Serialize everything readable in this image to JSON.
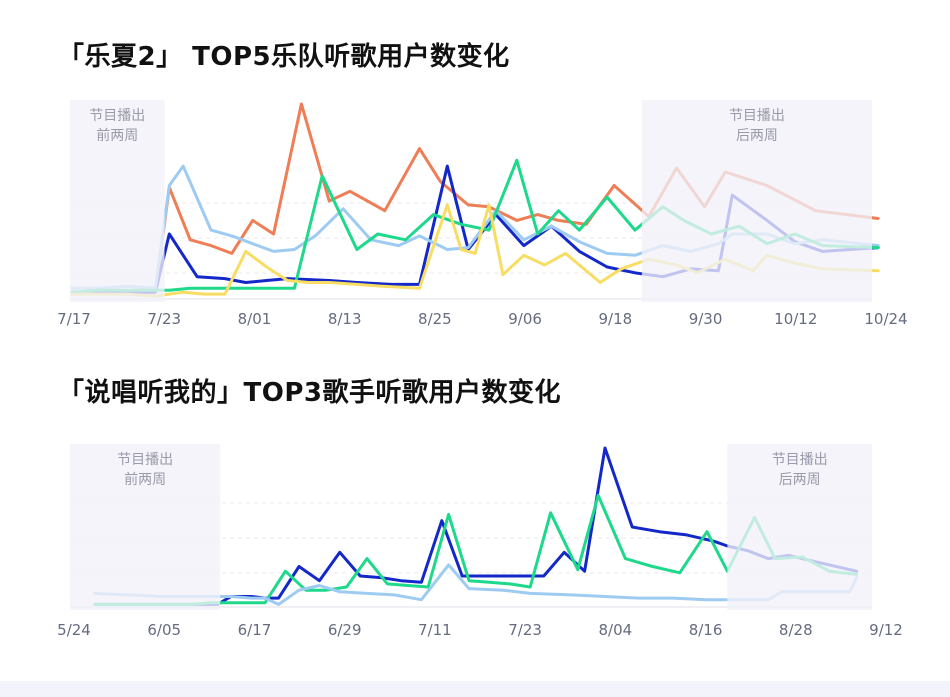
{
  "charts": {
    "band_title": "「乐夏2」 TOP5乐队听歌用户数变化",
    "rap_title": "「说唱听我的」TOP3歌手听歌用户数变化"
  },
  "chart_data": [
    {
      "type": "line",
      "title": "「乐夏2」 TOP5乐队听歌用户数变化",
      "x_tick_labels": [
        "7/17",
        "7/23",
        "8/01",
        "8/13",
        "8/25",
        "9/06",
        "9/18",
        "9/30",
        "10/12",
        "10/24"
      ],
      "x_start": "7/17",
      "annotations": [
        {
          "text": "节目播出\n前两周",
          "from_day": 0,
          "to_day": 9
        },
        {
          "text": "节目播出\n后两周",
          "from_day": 82,
          "to_day": 97
        }
      ],
      "grid": true,
      "y_axis_labels": false,
      "ylim": [
        0,
        100
      ],
      "colors": [
        "#ef7d55",
        "#1428c9",
        "#9ecbf2",
        "#1ed88b",
        "#f7dd63"
      ],
      "series": [
        {
          "color": "#ef7d55",
          "points": [
            [
              0,
              3
            ],
            [
              4,
              3
            ],
            [
              8,
              3
            ],
            [
              10,
              3
            ],
            [
              12,
              3
            ],
            [
              14,
              57
            ],
            [
              17,
              30
            ],
            [
              20,
              27
            ],
            [
              23,
              23
            ],
            [
              26,
              40
            ],
            [
              29,
              33
            ],
            [
              33,
              100
            ],
            [
              37,
              50
            ],
            [
              40,
              55
            ],
            [
              45,
              45
            ],
            [
              50,
              77
            ],
            [
              53,
              60
            ],
            [
              57,
              48
            ],
            [
              60,
              47
            ],
            [
              64,
              40
            ],
            [
              67,
              43
            ],
            [
              70,
              40
            ],
            [
              74,
              38
            ],
            [
              78,
              58
            ],
            [
              83,
              42
            ],
            [
              87,
              67
            ],
            [
              91,
              47
            ],
            [
              94,
              65
            ],
            [
              100,
              58
            ],
            [
              107,
              45
            ],
            [
              116,
              41
            ]
          ]
        },
        {
          "color": "#1428c9",
          "points": [
            [
              0,
              3
            ],
            [
              4,
              3
            ],
            [
              8,
              3
            ],
            [
              10,
              3
            ],
            [
              12,
              3
            ],
            [
              14,
              33
            ],
            [
              18,
              11
            ],
            [
              22,
              10
            ],
            [
              25,
              8
            ],
            [
              28,
              9
            ],
            [
              31,
              10
            ],
            [
              37,
              9
            ],
            [
              41,
              8
            ],
            [
              46,
              7
            ],
            [
              50,
              7
            ],
            [
              54,
              68
            ],
            [
              57,
              25
            ],
            [
              61,
              43
            ],
            [
              65,
              27
            ],
            [
              69,
              37
            ],
            [
              73,
              24
            ],
            [
              77,
              16
            ],
            [
              81,
              13
            ],
            [
              85,
              11
            ],
            [
              89,
              15
            ],
            [
              93,
              14
            ],
            [
              95,
              53
            ],
            [
              100,
              40
            ],
            [
              104,
              29
            ],
            [
              108,
              24
            ],
            [
              116,
              26
            ]
          ]
        },
        {
          "color": "#9ecbf2",
          "points": [
            [
              0,
              5
            ],
            [
              4,
              5
            ],
            [
              8,
              6
            ],
            [
              12,
              5
            ],
            [
              14,
              58
            ],
            [
              16,
              68
            ],
            [
              20,
              35
            ],
            [
              23,
              32
            ],
            [
              26,
              28
            ],
            [
              29,
              24
            ],
            [
              32,
              25
            ],
            [
              35,
              32
            ],
            [
              39,
              46
            ],
            [
              43,
              30
            ],
            [
              47,
              27
            ],
            [
              50,
              32
            ],
            [
              54,
              25
            ],
            [
              57,
              26
            ],
            [
              61,
              45
            ],
            [
              65,
              30
            ],
            [
              69,
              37
            ],
            [
              73,
              29
            ],
            [
              77,
              23
            ],
            [
              81,
              22
            ],
            [
              85,
              27
            ],
            [
              89,
              24
            ],
            [
              93,
              28
            ],
            [
              95,
              33
            ],
            [
              100,
              33
            ],
            [
              104,
              28
            ],
            [
              108,
              30
            ],
            [
              116,
              27
            ]
          ]
        },
        {
          "color": "#1ed88b",
          "points": [
            [
              0,
              3
            ],
            [
              4,
              4
            ],
            [
              8,
              4
            ],
            [
              12,
              4
            ],
            [
              14,
              4
            ],
            [
              17,
              5
            ],
            [
              20,
              5
            ],
            [
              24,
              5
            ],
            [
              28,
              5
            ],
            [
              32,
              5
            ],
            [
              36,
              63
            ],
            [
              41,
              25
            ],
            [
              44,
              33
            ],
            [
              48,
              30
            ],
            [
              52,
              43
            ],
            [
              56,
              38
            ],
            [
              60,
              35
            ],
            [
              64,
              71
            ],
            [
              67,
              33
            ],
            [
              70,
              45
            ],
            [
              73,
              35
            ],
            [
              77,
              52
            ],
            [
              81,
              35
            ],
            [
              85,
              47
            ],
            [
              88,
              40
            ],
            [
              92,
              33
            ],
            [
              96,
              37
            ],
            [
              100,
              28
            ],
            [
              104,
              33
            ],
            [
              108,
              27
            ],
            [
              116,
              26
            ]
          ]
        },
        {
          "color": "#f7dd63",
          "points": [
            [
              0,
              2
            ],
            [
              4,
              2
            ],
            [
              8,
              2
            ],
            [
              12,
              1
            ],
            [
              16,
              3
            ],
            [
              19,
              2
            ],
            [
              22,
              2
            ],
            [
              25,
              24
            ],
            [
              28,
              16
            ],
            [
              31,
              9
            ],
            [
              34,
              8
            ],
            [
              37,
              8
            ],
            [
              41,
              7
            ],
            [
              45,
              6
            ],
            [
              50,
              5
            ],
            [
              54,
              48
            ],
            [
              56,
              25
            ],
            [
              58,
              23
            ],
            [
              60,
              48
            ],
            [
              62,
              12
            ],
            [
              65,
              22
            ],
            [
              68,
              17
            ],
            [
              71,
              23
            ],
            [
              76,
              8
            ],
            [
              79,
              15
            ],
            [
              83,
              20
            ],
            [
              87,
              17
            ],
            [
              90,
              13
            ],
            [
              94,
              20
            ],
            [
              98,
              14
            ],
            [
              100,
              22
            ],
            [
              104,
              18
            ],
            [
              108,
              15
            ],
            [
              116,
              14
            ]
          ]
        }
      ]
    },
    {
      "type": "line",
      "title": "「说唱听我的」TOP3歌手听歌用户数变化",
      "x_tick_labels": [
        "5/24",
        "6/05",
        "6/17",
        "6/29",
        "7/11",
        "7/23",
        "8/04",
        "8/16",
        "8/28",
        "9/12"
      ],
      "x_start": "5/24",
      "annotations": [
        {
          "text": "节目播出\n前两周",
          "from_day": 0,
          "to_day": 14
        },
        {
          "text": "节目播出\n后两周",
          "from_day": 93,
          "to_day": 112
        }
      ],
      "grid": true,
      "y_axis_labels": false,
      "ylim": [
        0,
        100
      ],
      "colors": [
        "#1428c9",
        "#1ed88b",
        "#9ecbf2"
      ],
      "series": [
        {
          "color": "#1428c9",
          "points": [
            [
              0,
              1
            ],
            [
              5,
              1
            ],
            [
              10,
              1
            ],
            [
              14,
              1
            ],
            [
              18,
              1
            ],
            [
              20,
              6
            ],
            [
              23,
              6
            ],
            [
              25,
              5
            ],
            [
              27,
              5
            ],
            [
              30,
              25
            ],
            [
              33,
              16
            ],
            [
              36,
              34
            ],
            [
              39,
              19
            ],
            [
              42,
              18
            ],
            [
              45,
              16
            ],
            [
              48,
              15
            ],
            [
              51,
              54
            ],
            [
              54,
              19
            ],
            [
              57,
              19
            ],
            [
              60,
              19
            ],
            [
              63,
              19
            ],
            [
              66,
              19
            ],
            [
              69,
              34
            ],
            [
              72,
              22
            ],
            [
              75,
              100
            ],
            [
              79,
              50
            ],
            [
              83,
              47
            ],
            [
              87,
              45
            ],
            [
              91,
              41
            ],
            [
              93,
              38
            ],
            [
              96,
              35
            ],
            [
              99,
              30
            ],
            [
              102,
              32
            ],
            [
              106,
              28
            ],
            [
              112,
              22
            ]
          ]
        },
        {
          "color": "#1ed88b",
          "points": [
            [
              0,
              1
            ],
            [
              5,
              1
            ],
            [
              10,
              1
            ],
            [
              14,
              1
            ],
            [
              17,
              2
            ],
            [
              20,
              2
            ],
            [
              23,
              2
            ],
            [
              25,
              2
            ],
            [
              28,
              22
            ],
            [
              31,
              10
            ],
            [
              34,
              10
            ],
            [
              37,
              12
            ],
            [
              40,
              30
            ],
            [
              43,
              14
            ],
            [
              46,
              13
            ],
            [
              49,
              12
            ],
            [
              52,
              58
            ],
            [
              55,
              16
            ],
            [
              58,
              15
            ],
            [
              61,
              14
            ],
            [
              64,
              12
            ],
            [
              67,
              59
            ],
            [
              71,
              23
            ],
            [
              74,
              70
            ],
            [
              78,
              30
            ],
            [
              82,
              25
            ],
            [
              86,
              21
            ],
            [
              90,
              47
            ],
            [
              93,
              22
            ],
            [
              97,
              56
            ],
            [
              100,
              30
            ],
            [
              104,
              31
            ],
            [
              108,
              22
            ],
            [
              112,
              20
            ]
          ]
        },
        {
          "color": "#9ecbf2",
          "points": [
            [
              0,
              8
            ],
            [
              5,
              7
            ],
            [
              10,
              6
            ],
            [
              15,
              6
            ],
            [
              18,
              6
            ],
            [
              20,
              6
            ],
            [
              23,
              5
            ],
            [
              25,
              5
            ],
            [
              27,
              1
            ],
            [
              30,
              10
            ],
            [
              33,
              13
            ],
            [
              36,
              9
            ],
            [
              40,
              8
            ],
            [
              44,
              7
            ],
            [
              48,
              4
            ],
            [
              52,
              26
            ],
            [
              55,
              11
            ],
            [
              60,
              10
            ],
            [
              64,
              8
            ],
            [
              70,
              7
            ],
            [
              75,
              6
            ],
            [
              80,
              5
            ],
            [
              85,
              5
            ],
            [
              90,
              4
            ],
            [
              95,
              4
            ],
            [
              99,
              4
            ],
            [
              101,
              9
            ],
            [
              104,
              9
            ],
            [
              108,
              9
            ],
            [
              111,
              9
            ],
            [
              112,
              18
            ]
          ]
        }
      ]
    }
  ]
}
